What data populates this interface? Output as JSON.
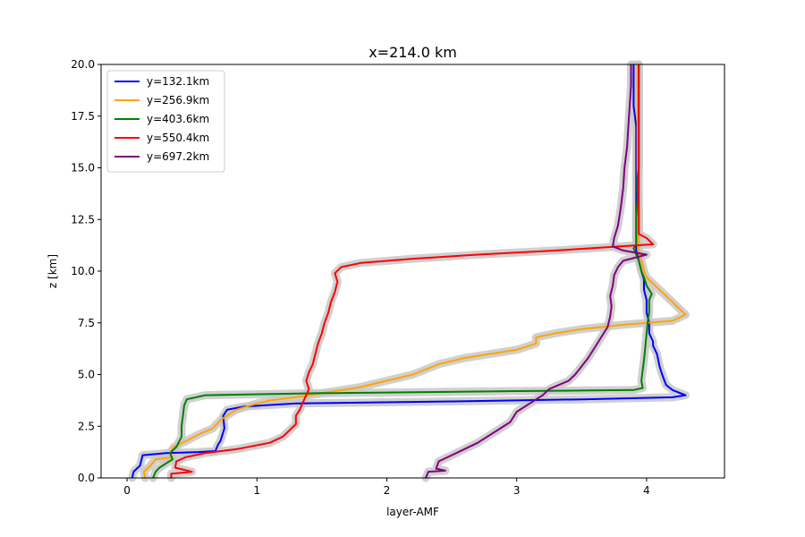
{
  "chart_data": {
    "type": "line",
    "title": "x=214.0 km",
    "xlabel": "layer-AMF",
    "ylabel": "z [km]",
    "xlim": [
      -0.2,
      4.6
    ],
    "ylim": [
      0,
      20
    ],
    "xticks": [
      0,
      1,
      2,
      3,
      4
    ],
    "xtick_labels": [
      "0",
      "1",
      "2",
      "3",
      "4"
    ],
    "yticks": [
      0,
      2.5,
      5,
      7.5,
      10,
      12.5,
      15,
      17.5,
      20
    ],
    "ytick_labels": [
      "0.0",
      "2.5",
      "5.0",
      "7.5",
      "10.0",
      "12.5",
      "15.0",
      "17.5",
      "20.0"
    ],
    "grid": false,
    "legend_position": "top-left",
    "uncertainty_band_color": "#c8c8c8",
    "series": [
      {
        "name": "y=132.1km",
        "color": "#0000ff",
        "points": [
          [
            0.04,
            0
          ],
          [
            0.05,
            0.3
          ],
          [
            0.1,
            0.6
          ],
          [
            0.12,
            1.1
          ],
          [
            0.3,
            1.2
          ],
          [
            0.55,
            1.25
          ],
          [
            0.68,
            1.3
          ],
          [
            0.7,
            1.6
          ],
          [
            0.72,
            1.8
          ],
          [
            0.75,
            2.4
          ],
          [
            0.74,
            3.0
          ],
          [
            0.77,
            3.3
          ],
          [
            0.9,
            3.45
          ],
          [
            1.3,
            3.6
          ],
          [
            2.5,
            3.7
          ],
          [
            3.5,
            3.8
          ],
          [
            4.2,
            3.9
          ],
          [
            4.3,
            4.0
          ],
          [
            4.2,
            4.25
          ],
          [
            4.15,
            4.5
          ],
          [
            4.12,
            5.0
          ],
          [
            4.1,
            5.4
          ],
          [
            4.08,
            6.0
          ],
          [
            4.05,
            6.4
          ],
          [
            4.05,
            6.6
          ],
          [
            4.02,
            7.0
          ],
          [
            4.02,
            7.5
          ],
          [
            4.0,
            8.0
          ],
          [
            4.0,
            8.6
          ],
          [
            3.98,
            9.1
          ],
          [
            3.98,
            9.6
          ],
          [
            3.96,
            10.0
          ],
          [
            3.94,
            10.5
          ],
          [
            3.92,
            11.0
          ],
          [
            3.92,
            11.5
          ],
          [
            3.92,
            12.0
          ],
          [
            3.92,
            13.0
          ],
          [
            3.92,
            14.0
          ],
          [
            3.92,
            15.0
          ],
          [
            3.92,
            16.0
          ],
          [
            3.92,
            17.0
          ],
          [
            3.9,
            18.0
          ],
          [
            3.9,
            19.0
          ],
          [
            3.9,
            20.0
          ]
        ]
      },
      {
        "name": "y=256.9km",
        "color": "#ffa500",
        "points": [
          [
            0.14,
            0
          ],
          [
            0.13,
            0.3
          ],
          [
            0.18,
            0.6
          ],
          [
            0.22,
            0.9
          ],
          [
            0.35,
            1.0
          ],
          [
            0.33,
            1.2
          ],
          [
            0.36,
            1.5
          ],
          [
            0.46,
            1.8
          ],
          [
            0.55,
            2.1
          ],
          [
            0.66,
            2.4
          ],
          [
            0.72,
            2.8
          ],
          [
            0.84,
            3.3
          ],
          [
            1.0,
            3.6
          ],
          [
            1.1,
            3.75
          ],
          [
            1.3,
            3.9
          ],
          [
            1.6,
            4.2
          ],
          [
            1.8,
            4.4
          ],
          [
            2.0,
            4.7
          ],
          [
            2.2,
            5.0
          ],
          [
            2.4,
            5.5
          ],
          [
            2.6,
            5.8
          ],
          [
            2.8,
            6.0
          ],
          [
            3.0,
            6.2
          ],
          [
            3.15,
            6.5
          ],
          [
            3.15,
            6.8
          ],
          [
            3.3,
            7.0
          ],
          [
            3.5,
            7.2
          ],
          [
            3.8,
            7.4
          ],
          [
            4.2,
            7.6
          ],
          [
            4.3,
            7.9
          ],
          [
            4.25,
            8.2
          ],
          [
            4.2,
            8.5
          ],
          [
            4.15,
            8.8
          ],
          [
            4.1,
            9.1
          ],
          [
            4.05,
            9.4
          ],
          [
            4.0,
            9.7
          ],
          [
            3.98,
            10.0
          ],
          [
            3.96,
            10.5
          ],
          [
            3.94,
            11.0
          ],
          [
            3.94,
            11.5
          ],
          [
            3.94,
            12.0
          ],
          [
            3.94,
            13.0
          ],
          [
            3.93,
            14.0
          ],
          [
            3.93,
            15.0
          ],
          [
            3.93,
            16.0
          ],
          [
            3.93,
            17.0
          ],
          [
            3.93,
            18.0
          ],
          [
            3.93,
            19.0
          ],
          [
            3.93,
            20.0
          ]
        ]
      },
      {
        "name": "y=403.6km",
        "color": "#008000",
        "points": [
          [
            0.2,
            0
          ],
          [
            0.22,
            0.3
          ],
          [
            0.25,
            0.5
          ],
          [
            0.3,
            0.7
          ],
          [
            0.35,
            0.9
          ],
          [
            0.33,
            1.2
          ],
          [
            0.38,
            1.5
          ],
          [
            0.42,
            2.0
          ],
          [
            0.42,
            2.5
          ],
          [
            0.43,
            3.0
          ],
          [
            0.44,
            3.5
          ],
          [
            0.46,
            3.8
          ],
          [
            0.6,
            4.0
          ],
          [
            1.5,
            4.1
          ],
          [
            3.0,
            4.2
          ],
          [
            3.9,
            4.25
          ],
          [
            3.97,
            4.35
          ],
          [
            3.96,
            4.7
          ],
          [
            3.97,
            5.2
          ],
          [
            3.98,
            5.7
          ],
          [
            3.99,
            6.3
          ],
          [
            4.0,
            7.0
          ],
          [
            4.01,
            7.6
          ],
          [
            4.02,
            8.0
          ],
          [
            4.02,
            8.6
          ],
          [
            4.04,
            8.9
          ],
          [
            4.0,
            9.3
          ],
          [
            3.98,
            9.7
          ],
          [
            3.96,
            10.0
          ],
          [
            3.94,
            10.5
          ],
          [
            3.92,
            10.8
          ],
          [
            3.9,
            11.1
          ],
          [
            3.92,
            11.3
          ],
          [
            3.92,
            11.8
          ],
          [
            3.92,
            12.5
          ],
          [
            3.93,
            13.5
          ],
          [
            3.93,
            14.5
          ],
          [
            3.94,
            15.0
          ],
          [
            3.94,
            16.0
          ],
          [
            3.94,
            17.0
          ],
          [
            3.94,
            18.0
          ],
          [
            3.94,
            19.0
          ],
          [
            3.94,
            20.0
          ]
        ]
      },
      {
        "name": "y=550.4km",
        "color": "#ff0000",
        "points": [
          [
            0.34,
            0
          ],
          [
            0.34,
            0.2
          ],
          [
            0.5,
            0.3
          ],
          [
            0.37,
            0.5
          ],
          [
            0.38,
            0.8
          ],
          [
            0.45,
            1.0
          ],
          [
            0.6,
            1.2
          ],
          [
            0.85,
            1.4
          ],
          [
            1.1,
            1.7
          ],
          [
            1.2,
            2.0
          ],
          [
            1.25,
            2.3
          ],
          [
            1.3,
            2.6
          ],
          [
            1.3,
            3.0
          ],
          [
            1.33,
            3.3
          ],
          [
            1.35,
            3.6
          ],
          [
            1.38,
            4.0
          ],
          [
            1.4,
            4.3
          ],
          [
            1.38,
            4.7
          ],
          [
            1.4,
            5.1
          ],
          [
            1.43,
            5.5
          ],
          [
            1.45,
            6.0
          ],
          [
            1.47,
            6.5
          ],
          [
            1.5,
            7.0
          ],
          [
            1.52,
            7.5
          ],
          [
            1.55,
            8.0
          ],
          [
            1.57,
            8.5
          ],
          [
            1.6,
            9.0
          ],
          [
            1.62,
            9.5
          ],
          [
            1.6,
            9.9
          ],
          [
            1.65,
            10.2
          ],
          [
            1.8,
            10.4
          ],
          [
            2.2,
            10.6
          ],
          [
            2.7,
            10.8
          ],
          [
            3.3,
            11.0
          ],
          [
            3.8,
            11.2
          ],
          [
            4.05,
            11.3
          ],
          [
            4.0,
            11.6
          ],
          [
            3.94,
            11.8
          ],
          [
            3.94,
            12.0
          ],
          [
            3.94,
            13.0
          ],
          [
            3.94,
            14.0
          ],
          [
            3.94,
            15.0
          ],
          [
            3.94,
            16.0
          ],
          [
            3.94,
            17.0
          ],
          [
            3.94,
            18.0
          ],
          [
            3.94,
            19.0
          ],
          [
            3.94,
            20.0
          ]
        ]
      },
      {
        "name": "y=697.2km",
        "color": "#800080",
        "points": [
          [
            2.3,
            0
          ],
          [
            2.32,
            0.3
          ],
          [
            2.45,
            0.35
          ],
          [
            2.38,
            0.45
          ],
          [
            2.4,
            0.8
          ],
          [
            2.5,
            1.1
          ],
          [
            2.6,
            1.4
          ],
          [
            2.7,
            1.7
          ],
          [
            2.85,
            2.3
          ],
          [
            2.95,
            2.7
          ],
          [
            3.0,
            3.2
          ],
          [
            3.1,
            3.6
          ],
          [
            3.2,
            4.0
          ],
          [
            3.25,
            4.3
          ],
          [
            3.4,
            4.7
          ],
          [
            3.45,
            5.0
          ],
          [
            3.5,
            5.4
          ],
          [
            3.55,
            5.8
          ],
          [
            3.6,
            6.3
          ],
          [
            3.65,
            6.8
          ],
          [
            3.7,
            7.3
          ],
          [
            3.72,
            7.8
          ],
          [
            3.73,
            8.3
          ],
          [
            3.72,
            8.8
          ],
          [
            3.74,
            9.3
          ],
          [
            3.75,
            9.8
          ],
          [
            3.78,
            10.2
          ],
          [
            3.82,
            10.5
          ],
          [
            4.0,
            10.8
          ],
          [
            3.82,
            11.0
          ],
          [
            3.74,
            11.2
          ],
          [
            3.75,
            11.6
          ],
          [
            3.78,
            12.2
          ],
          [
            3.8,
            13.0
          ],
          [
            3.82,
            14.0
          ],
          [
            3.83,
            15.0
          ],
          [
            3.85,
            16.0
          ],
          [
            3.86,
            17.0
          ],
          [
            3.87,
            18.0
          ],
          [
            3.88,
            19.0
          ],
          [
            3.88,
            20.0
          ]
        ]
      }
    ]
  }
}
